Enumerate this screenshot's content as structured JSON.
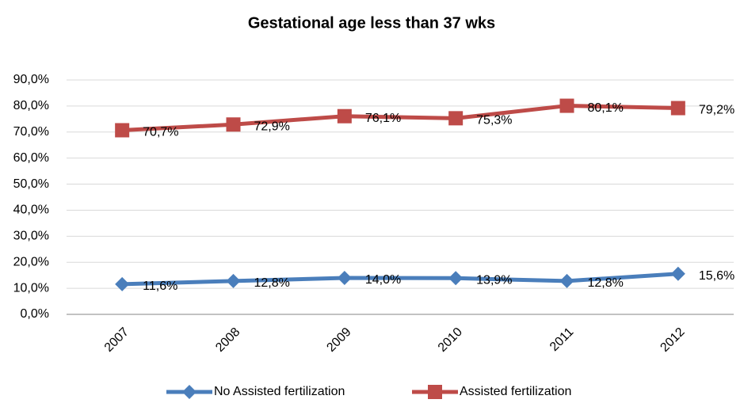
{
  "chart_data": {
    "type": "line",
    "title": "Gestational age less than 37 wks",
    "categories": [
      "2007",
      "2008",
      "2009",
      "2010",
      "2011",
      "2012"
    ],
    "series": [
      {
        "name": "No Assisted fertilization",
        "color": "#4a7ebb",
        "marker": "diamond",
        "values": [
          11.6,
          12.8,
          14.0,
          13.9,
          12.8,
          15.6
        ],
        "value_labels": [
          "11,6%",
          "12,8%",
          "14,0%",
          "13,9%",
          "12,8%",
          "15,6%"
        ]
      },
      {
        "name": "Assisted fertilization",
        "color": "#be4b48",
        "marker": "square",
        "values": [
          70.7,
          72.9,
          76.1,
          75.3,
          80.1,
          79.2
        ],
        "value_labels": [
          "70,7%",
          "72,9%",
          "76,1%",
          "75,3%",
          "80,1%",
          "79,2%"
        ]
      }
    ],
    "ylim": [
      0,
      90
    ],
    "yticks": [
      {
        "value": 0,
        "label": "0,0%"
      },
      {
        "value": 10,
        "label": "10,0%"
      },
      {
        "value": 20,
        "label": "20,0%"
      },
      {
        "value": 30,
        "label": "30,0%"
      },
      {
        "value": 40,
        "label": "40,0%"
      },
      {
        "value": 50,
        "label": "50,0%"
      },
      {
        "value": 60,
        "label": "60,0%"
      },
      {
        "value": 70,
        "label": "70,0%"
      },
      {
        "value": 80,
        "label": "80,0%"
      },
      {
        "value": 90,
        "label": "90,0%"
      }
    ],
    "grid": true,
    "legend": "bottom"
  }
}
